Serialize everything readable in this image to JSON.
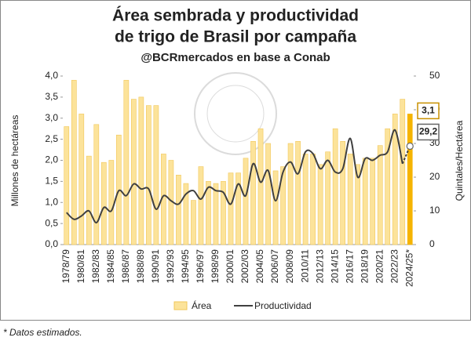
{
  "chart_data": {
    "type": "bar_line",
    "title": [
      "Área sembrada y productividad",
      "de trigo de Brasil por campaña"
    ],
    "subtitle": "@BCRmercados en base a Conab",
    "ylabel": "Millones de hectáreas",
    "y2label": "Quintales/Hectárea",
    "footnote": "* Datos estimados.",
    "categories": [
      "1978/79",
      null,
      "1980/81",
      null,
      "1982/83",
      null,
      "1984/85",
      null,
      "1986/87",
      null,
      "1988/89",
      null,
      "1990/91",
      null,
      "1992/93",
      null,
      "1994/95",
      null,
      "1996/97",
      null,
      "1998/99",
      null,
      "2000/01",
      null,
      "2002/03",
      null,
      "2004/05",
      null,
      "2006/07",
      null,
      "2008/09",
      null,
      "2010/11",
      null,
      "2012/13",
      null,
      "2014/15",
      null,
      "2016/17",
      null,
      "2018/19",
      null,
      "2020/21",
      null,
      "2022/23",
      null,
      "2024/25*"
    ],
    "series": [
      {
        "name": "Área",
        "type": "bar",
        "axis": "y",
        "color": "#fce39a",
        "border": "#f1c75a",
        "highlight_color": "#f5b400",
        "values": [
          2.8,
          3.9,
          3.1,
          2.1,
          2.85,
          1.95,
          2.0,
          2.6,
          3.9,
          3.45,
          3.5,
          3.3,
          3.3,
          2.15,
          2.0,
          1.65,
          1.45,
          1.05,
          1.85,
          1.5,
          1.45,
          1.5,
          1.7,
          1.7,
          2.05,
          2.45,
          2.75,
          2.4,
          1.75,
          1.85,
          2.4,
          2.45,
          2.15,
          2.15,
          1.9,
          2.2,
          2.75,
          2.45,
          2.15,
          1.9,
          2.05,
          2.05,
          2.35,
          2.75,
          3.1,
          3.45,
          3.1
        ],
        "value_labels": {
          "46": "3,1"
        }
      },
      {
        "name": "Productividad",
        "type": "line",
        "axis": "y2",
        "color": "#404040",
        "dashed_last": true,
        "values": [
          9.5,
          7.5,
          8.5,
          10,
          6.5,
          11,
          10,
          16,
          14.5,
          18,
          16.5,
          16.5,
          10.5,
          14.5,
          13,
          12,
          15,
          16,
          13.5,
          17,
          16,
          15.5,
          12,
          18,
          14.5,
          24,
          18.5,
          22,
          13,
          21.5,
          24.5,
          21,
          27.5,
          27,
          22.5,
          25,
          21.5,
          22.5,
          31.5,
          20,
          25.5,
          25,
          26.5,
          27.5,
          34,
          24,
          29.2
        ],
        "value_labels": {
          "46": "29,2"
        }
      }
    ],
    "ylim": [
      0,
      4
    ],
    "yticks": [
      {
        "value": 0,
        "label": "0,0"
      },
      {
        "value": 0.5,
        "label": "0,5"
      },
      {
        "value": 1,
        "label": "1,0"
      },
      {
        "value": 1.5,
        "label": "1,5"
      },
      {
        "value": 2,
        "label": "2,0"
      },
      {
        "value": 2.5,
        "label": "2,5"
      },
      {
        "value": 3,
        "label": "3,0"
      },
      {
        "value": 3.5,
        "label": "3,5"
      },
      {
        "value": 4,
        "label": "4,0"
      }
    ],
    "y2lim": [
      0,
      50
    ],
    "y2ticks": [
      0,
      10,
      20,
      30,
      40,
      50
    ],
    "legend": "bottom",
    "grid": false
  }
}
